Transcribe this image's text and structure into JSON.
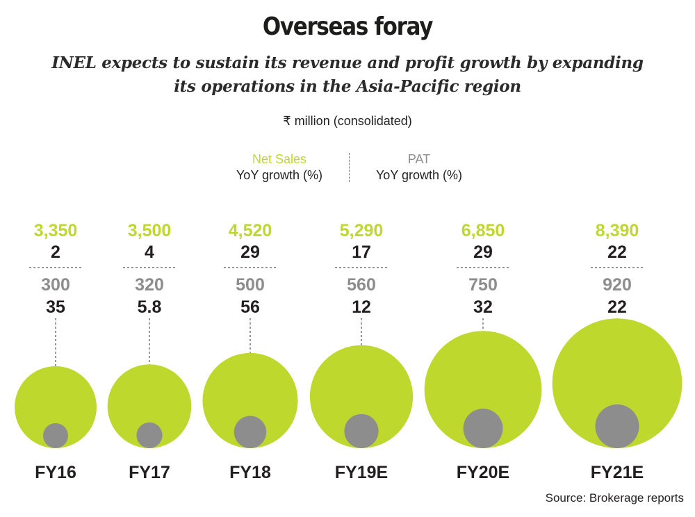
{
  "chart_data": {
    "type": "bubble",
    "title": "Overseas foray",
    "subtitle": "INEL expects to sustain its revenue and profit growth by expanding its operations in the Asia-Pacific region",
    "unit": "₹ million (consolidated)",
    "legend": {
      "sales_name": "Net Sales",
      "sales_metric": "YoY growth (%)",
      "pat_name": "PAT",
      "pat_metric": "YoY growth (%)"
    },
    "categories": [
      "FY16",
      "FY17",
      "FY18",
      "FY19E",
      "FY20E",
      "FY21E"
    ],
    "series": [
      {
        "name": "Net Sales",
        "color": "#bfd82e",
        "values": [
          3350,
          3500,
          4520,
          5290,
          6850,
          8390
        ],
        "labels": [
          "3,350",
          "3,500",
          "4,520",
          "5,290",
          "6,850",
          "8,390"
        ],
        "growth": [
          "2",
          "4",
          "29",
          "17",
          "29",
          "22"
        ]
      },
      {
        "name": "PAT",
        "color": "#8d8d8d",
        "values": [
          300,
          320,
          500,
          560,
          750,
          920
        ],
        "labels": [
          "300",
          "320",
          "500",
          "560",
          "750",
          "920"
        ],
        "growth": [
          "35",
          "5.8",
          "56",
          "12",
          "32",
          "22"
        ]
      }
    ]
  },
  "source": "Source: Brokerage reports"
}
